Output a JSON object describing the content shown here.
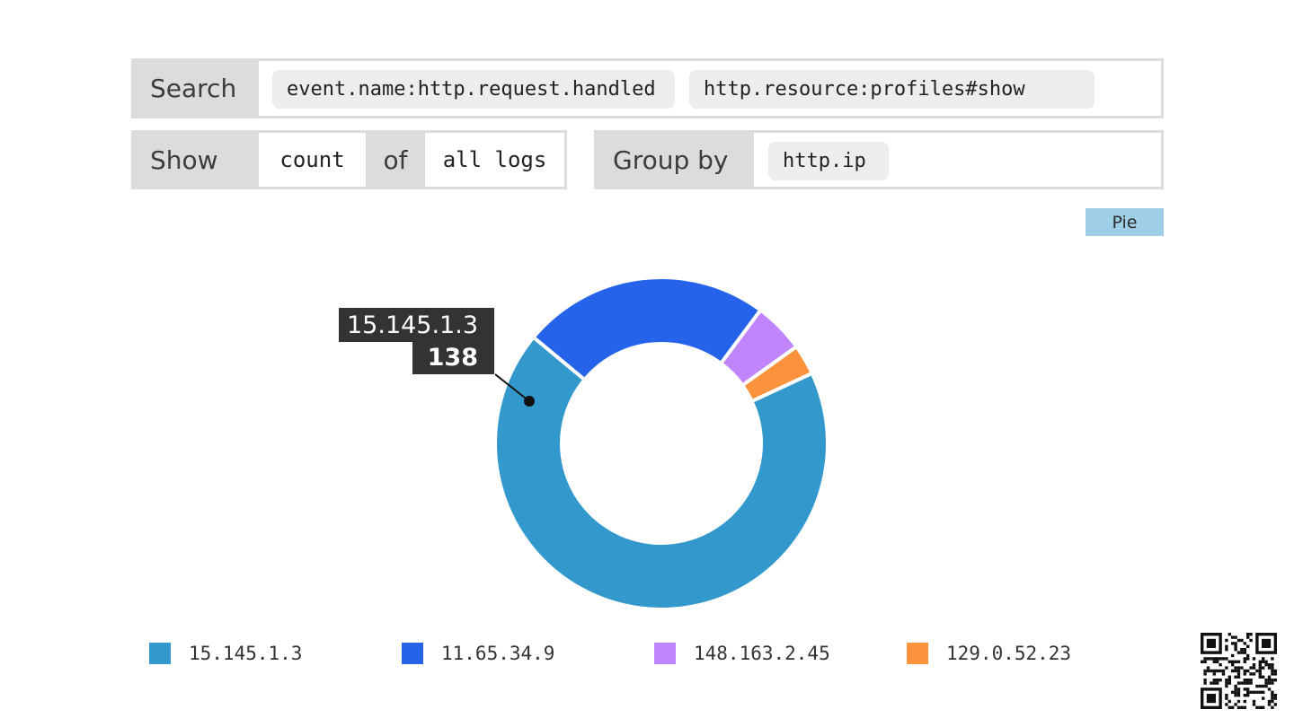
{
  "query": {
    "search_label": "Search",
    "search_terms": [
      "event.name:http.request.handled",
      "http.resource:profiles#show"
    ],
    "show_label": "Show",
    "aggregation": "count",
    "of_label": "of",
    "source": "all logs",
    "group_by_label": "Group by",
    "group_by_field": "http.ip"
  },
  "viz_toggle": {
    "label": "Pie"
  },
  "tooltip": {
    "name": "15.145.1.3",
    "value": "138"
  },
  "chart_data": {
    "type": "pie",
    "style": "donut",
    "categories": [
      "15.145.1.3",
      "11.65.34.9",
      "148.163.2.45",
      "129.0.52.23"
    ],
    "values": [
      138,
      49,
      10,
      6
    ],
    "colors": [
      "#3399cc",
      "#2563eb",
      "#c084fc",
      "#fb923c"
    ],
    "legend_position": "bottom"
  }
}
